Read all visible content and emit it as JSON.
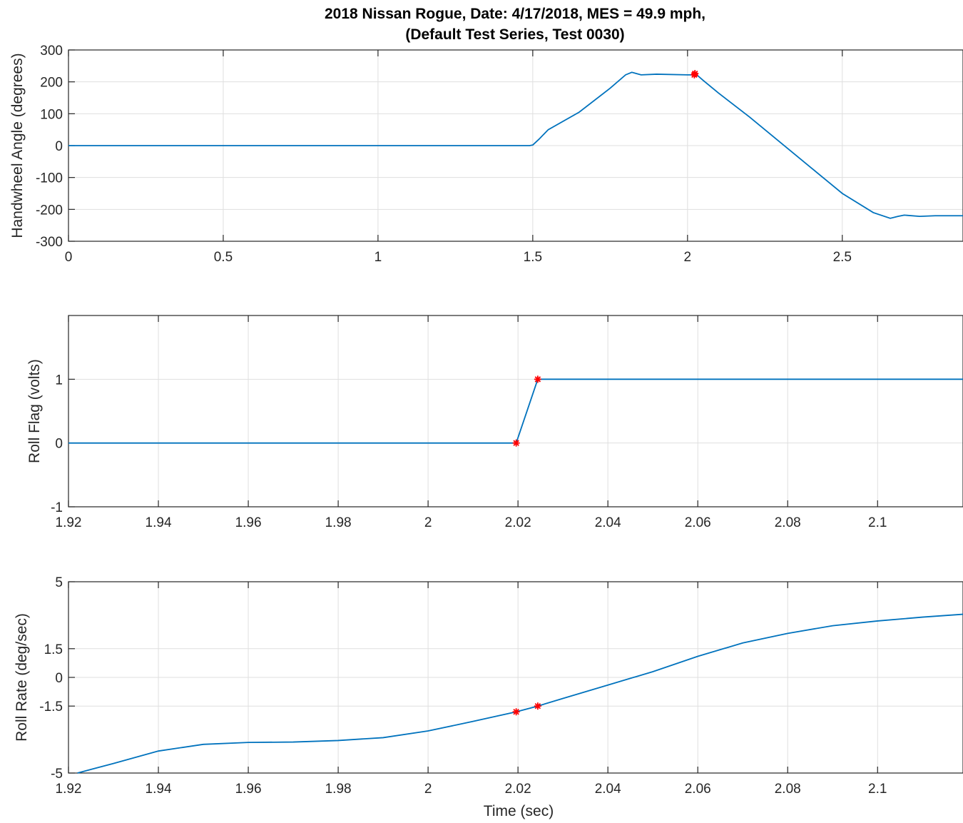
{
  "figure": {
    "title_line1": "2018 Nissan Rogue, Date: 4/17/2018, MES = 49.9 mph,",
    "title_line2": "(Default Test Series, Test 0030)",
    "line_color": "#0072BD",
    "marker_color": "#FF0000",
    "marker_glyph": "*"
  },
  "chart_data": [
    {
      "type": "line",
      "ylabel": "Handwheel Angle (degrees)",
      "xlabel": "",
      "xlim": [
        0,
        2.89
      ],
      "ylim": [
        -300,
        300
      ],
      "xticks": [
        0,
        0.5,
        1,
        1.5,
        2,
        2.5
      ],
      "xtick_labels": [
        "0",
        "0.5",
        "1",
        "1.5",
        "2",
        "2.5"
      ],
      "yticks": [
        -300,
        -200,
        -100,
        0,
        100,
        200,
        300
      ],
      "ytick_labels": [
        "-300",
        "-200",
        "-100",
        "0",
        "100",
        "200",
        "300"
      ],
      "grid": true,
      "series": [
        {
          "x": [
            0,
            0.5,
            1,
            1.49,
            1.5,
            1.52,
            1.55,
            1.65,
            1.75,
            1.8,
            1.82,
            1.85,
            1.9,
            2.0,
            2.03,
            2.05,
            2.1,
            2.2,
            2.3,
            2.4,
            2.5,
            2.6,
            2.655,
            2.68,
            2.7,
            2.75,
            2.8,
            2.89
          ],
          "y": [
            0,
            0,
            0,
            0,
            2,
            20,
            50,
            105,
            180,
            222,
            230,
            222,
            224,
            222,
            222,
            205,
            165,
            90,
            10,
            -70,
            -150,
            -210,
            -228,
            -222,
            -218,
            -222,
            -220,
            -220
          ]
        }
      ],
      "markers": {
        "x": [
          2.022,
          2.024
        ],
        "y": [
          222,
          226
        ]
      }
    },
    {
      "type": "line",
      "ylabel": "Roll Flag (volts)",
      "xlabel": "",
      "xlim": [
        1.92,
        2.119
      ],
      "ylim": [
        -1,
        2
      ],
      "xticks": [
        1.92,
        1.94,
        1.96,
        1.98,
        2.0,
        2.02,
        2.04,
        2.06,
        2.08,
        2.1
      ],
      "xtick_labels": [
        "1.92",
        "1.94",
        "1.96",
        "1.98",
        "2",
        "2.02",
        "2.04",
        "2.06",
        "2.08",
        "2.1"
      ],
      "yticks": [
        -1,
        0,
        1
      ],
      "ytick_labels": [
        "-1",
        "0",
        "1"
      ],
      "grid": true,
      "series": [
        {
          "x": [
            1.92,
            2.0196,
            2.0244,
            2.119
          ],
          "y": [
            0,
            0,
            1,
            1
          ]
        }
      ],
      "markers": {
        "x": [
          2.0196,
          2.0244
        ],
        "y": [
          0,
          1
        ]
      }
    },
    {
      "type": "line",
      "ylabel": "Roll Rate (deg/sec)",
      "xlabel": "Time (sec)",
      "xlim": [
        1.92,
        2.119
      ],
      "ylim": [
        -5,
        5
      ],
      "xticks": [
        1.92,
        1.94,
        1.96,
        1.98,
        2.0,
        2.02,
        2.04,
        2.06,
        2.08,
        2.1
      ],
      "xtick_labels": [
        "1.92",
        "1.94",
        "1.96",
        "1.98",
        "2",
        "2.02",
        "2.04",
        "2.06",
        "2.08",
        "2.1"
      ],
      "yticks": [
        -5,
        -1.5,
        0,
        1.5,
        5
      ],
      "ytick_labels": [
        "-5",
        "-1.5",
        "0",
        "1.5",
        "5"
      ],
      "grid": true,
      "series": [
        {
          "x": [
            1.922,
            1.93,
            1.94,
            1.95,
            1.96,
            1.97,
            1.98,
            1.99,
            2.0,
            2.01,
            2.0196,
            2.0244,
            2.03,
            2.04,
            2.05,
            2.06,
            2.07,
            2.08,
            2.09,
            2.1,
            2.11,
            2.119
          ],
          "y": [
            -5.0,
            -4.5,
            -3.85,
            -3.5,
            -3.4,
            -3.38,
            -3.3,
            -3.15,
            -2.8,
            -2.3,
            -1.8,
            -1.5,
            -1.1,
            -0.4,
            0.3,
            1.1,
            1.8,
            2.3,
            2.7,
            2.95,
            3.15,
            3.3
          ]
        }
      ],
      "markers": {
        "x": [
          2.0196,
          2.0244
        ],
        "y": [
          -1.8,
          -1.5
        ]
      }
    }
  ]
}
